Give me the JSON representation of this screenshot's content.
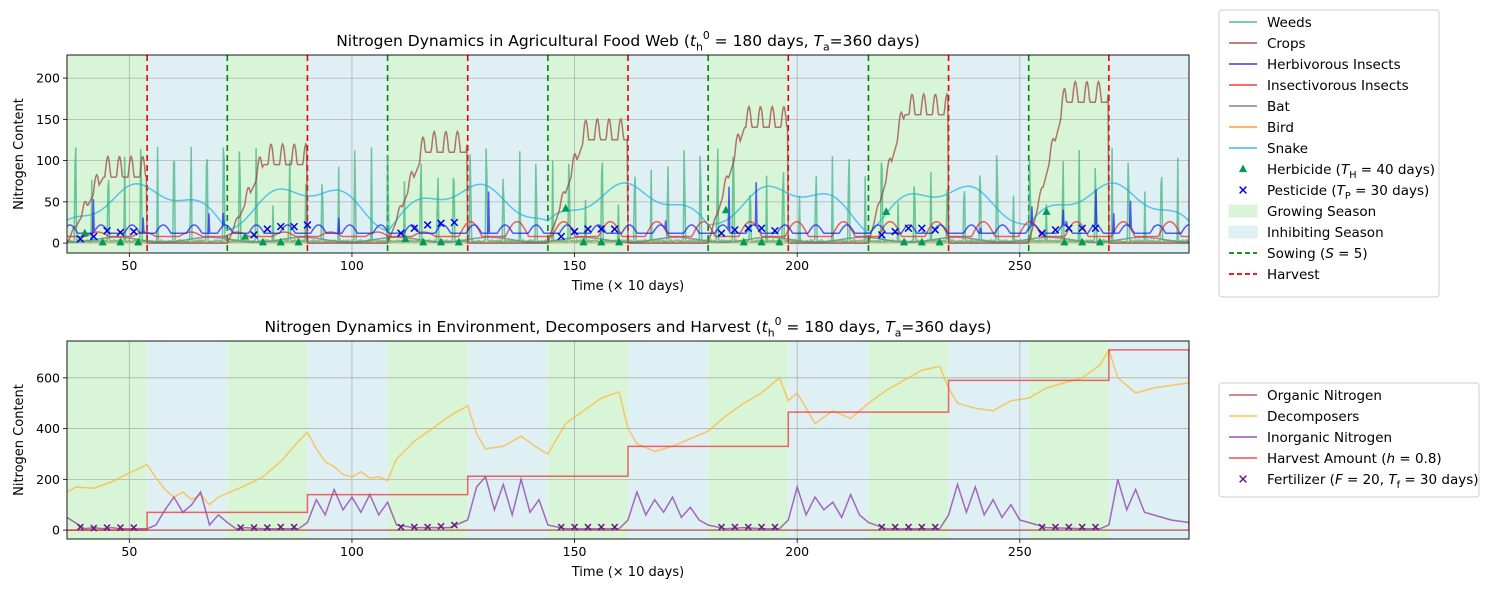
{
  "chart_data": [
    {
      "type": "line",
      "title": "Nitrogen Dynamics in Agricultural Food Web (t_h^0 = 180 days, T_a=360 days)",
      "title_parts": [
        "Nitrogen Dynamics in Agricultural Food Web (",
        "t",
        "h",
        "0",
        " = 180 days, ",
        "T",
        "a",
        "=360 days)"
      ],
      "xlabel": "Time (× 10 days)",
      "ylabel": "Nitrogen Content",
      "xlim": [
        36,
        288
      ],
      "ylim": [
        -12,
        228
      ],
      "xticks": [
        50,
        100,
        150,
        200,
        250
      ],
      "yticks": [
        0,
        50,
        100,
        150,
        200
      ],
      "grid": true,
      "legend_position": "outside right",
      "colors": {
        "Weeds": "#3cb07a",
        "Crops": "#9c3d36",
        "Herbivorous Insects": "#1a1aee",
        "Insectivorous Insects": "#ee2222",
        "Bat": "#707070",
        "Bird": "#ff8c1a",
        "Snake": "#1ab2ee",
        "Herbicide": "#009955",
        "Pesticide": "#0000ee",
        "growing": "#d8f5d8",
        "inhibiting": "#dff0f5",
        "sowing": "#008800",
        "harvest": "#ee0000"
      },
      "season_bounds": [
        36,
        54,
        72,
        90,
        108,
        126,
        144,
        162,
        180,
        198,
        216,
        234,
        252,
        270,
        288
      ],
      "season_types": [
        "growing",
        "inhibiting",
        "growing",
        "inhibiting",
        "growing",
        "inhibiting",
        "growing",
        "inhibiting",
        "growing",
        "inhibiting",
        "growing",
        "inhibiting",
        "growing",
        "inhibiting"
      ],
      "sowing_lines": [
        72,
        108,
        144,
        180,
        216,
        252
      ],
      "harvest_lines": [
        54,
        90,
        126,
        162,
        198,
        234,
        270
      ],
      "herbicide_points": [
        [
          40,
          12
        ],
        [
          44,
          1
        ],
        [
          48,
          1
        ],
        [
          52,
          1
        ],
        [
          76,
          8
        ],
        [
          80,
          1
        ],
        [
          84,
          1
        ],
        [
          88,
          1
        ],
        [
          112,
          5
        ],
        [
          116,
          1
        ],
        [
          120,
          1
        ],
        [
          124,
          1
        ],
        [
          148,
          42
        ],
        [
          152,
          1
        ],
        [
          156,
          1
        ],
        [
          160,
          1
        ],
        [
          184,
          40
        ],
        [
          188,
          1
        ],
        [
          192,
          1
        ],
        [
          196,
          1
        ],
        [
          220,
          38
        ],
        [
          224,
          1
        ],
        [
          228,
          1
        ],
        [
          232,
          1
        ],
        [
          256,
          38
        ],
        [
          260,
          1
        ],
        [
          264,
          1
        ],
        [
          268,
          1
        ]
      ],
      "pesticide_points": [
        [
          39,
          5
        ],
        [
          42,
          8
        ],
        [
          45,
          15
        ],
        [
          48,
          13
        ],
        [
          51,
          14
        ],
        [
          78,
          10
        ],
        [
          81,
          17
        ],
        [
          84,
          20
        ],
        [
          87,
          20
        ],
        [
          90,
          22
        ],
        [
          111,
          12
        ],
        [
          114,
          18
        ],
        [
          117,
          22
        ],
        [
          120,
          24
        ],
        [
          123,
          25
        ],
        [
          147,
          8
        ],
        [
          150,
          14
        ],
        [
          153,
          17
        ],
        [
          156,
          17
        ],
        [
          159,
          17
        ],
        [
          183,
          12
        ],
        [
          186,
          16
        ],
        [
          189,
          18
        ],
        [
          192,
          18
        ],
        [
          195,
          15
        ],
        [
          219,
          10
        ],
        [
          222,
          14
        ],
        [
          225,
          18
        ],
        [
          228,
          18
        ],
        [
          231,
          16
        ],
        [
          255,
          12
        ],
        [
          258,
          16
        ],
        [
          261,
          18
        ],
        [
          264,
          18
        ],
        [
          267,
          18
        ]
      ],
      "legend": [
        {
          "label": "Weeds",
          "kind": "line",
          "color": "#3cb07a"
        },
        {
          "label": "Crops",
          "kind": "line",
          "color": "#9c3d36"
        },
        {
          "label": "Herbivorous Insects",
          "kind": "line",
          "color": "#1a1aee"
        },
        {
          "label": "Insectivorous Insects",
          "kind": "line",
          "color": "#ee2222"
        },
        {
          "label": "Bat",
          "kind": "line",
          "color": "#707070"
        },
        {
          "label": "Bird",
          "kind": "line",
          "color": "#ff8c1a"
        },
        {
          "label": "Snake",
          "kind": "line",
          "color": "#1ab2ee"
        },
        {
          "label": "Herbicide (T_H = 40 days)",
          "parts": [
            "Herbicide (",
            "T",
            "H",
            " = 40 days)"
          ],
          "kind": "triangle",
          "color": "#009955"
        },
        {
          "label": "Pesticide (T_P = 30 days)",
          "parts": [
            "Pesticide (",
            "T",
            "P",
            " = 30 days)"
          ],
          "kind": "x",
          "color": "#0000ee"
        },
        {
          "label": "Growing Season",
          "kind": "patch",
          "color": "#d8f5d8"
        },
        {
          "label": "Inhibiting Season",
          "kind": "patch",
          "color": "#dff0f5"
        },
        {
          "label": "Sowing (S = 5)",
          "parts": [
            "Sowing (",
            "S",
            "",
            " = 5)"
          ],
          "kind": "dash",
          "color": "#008800"
        },
        {
          "label": "Harvest",
          "kind": "dash",
          "color": "#ee0000"
        }
      ]
    },
    {
      "type": "line",
      "title": "Nitrogen Dynamics in Environment, Decomposers and Harvest (t_h^0 = 180 days, T_a=360 days)",
      "title_parts": [
        "Nitrogen Dynamics in Environment, Decomposers and Harvest (",
        "t",
        "h",
        "0",
        " = 180 days, ",
        "T",
        "a",
        "=360 days)"
      ],
      "xlabel": "Time (× 10 days)",
      "ylabel": "Nitrogen Content",
      "xlim": [
        36,
        288
      ],
      "ylim": [
        -35,
        745
      ],
      "xticks": [
        50,
        100,
        150,
        200,
        250
      ],
      "yticks": [
        0,
        200,
        400,
        600
      ],
      "grid": true,
      "legend_position": "outside right",
      "series": [
        {
          "name": "Organic Nitrogen",
          "color": "#b34a4a",
          "x": [
            36,
            288
          ],
          "y": [
            0,
            0
          ]
        },
        {
          "name": "Decomposers",
          "color": "#ffb733",
          "x": [
            36,
            38,
            42,
            46,
            50,
            54,
            56,
            58,
            60,
            62,
            64,
            66,
            68,
            70,
            72,
            76,
            80,
            84,
            88,
            90,
            92,
            94,
            96,
            98,
            100,
            102,
            104,
            106,
            108,
            110,
            114,
            118,
            122,
            126,
            128,
            130,
            134,
            138,
            142,
            144,
            148,
            152,
            156,
            160,
            162,
            164,
            168,
            172,
            176,
            180,
            184,
            188,
            192,
            196,
            198,
            200,
            204,
            208,
            212,
            216,
            220,
            224,
            228,
            232,
            234,
            236,
            240,
            244,
            248,
            252,
            256,
            260,
            264,
            268,
            270,
            272,
            276,
            280,
            284,
            288
          ],
          "y": [
            150,
            170,
            165,
            190,
            225,
            258,
            205,
            160,
            130,
            150,
            120,
            140,
            100,
            130,
            145,
            175,
            210,
            270,
            350,
            385,
            320,
            270,
            250,
            220,
            210,
            230,
            205,
            210,
            195,
            280,
            350,
            400,
            450,
            490,
            380,
            320,
            330,
            370,
            320,
            300,
            420,
            470,
            520,
            545,
            400,
            340,
            310,
            330,
            360,
            390,
            450,
            500,
            540,
            600,
            510,
            540,
            420,
            470,
            440,
            500,
            550,
            590,
            630,
            645,
            560,
            500,
            480,
            470,
            510,
            520,
            560,
            580,
            600,
            650,
            710,
            600,
            540,
            560,
            570,
            580
          ]
        },
        {
          "name": "Inorganic Nitrogen",
          "color": "#8e3aa8",
          "x": [
            36,
            40,
            42,
            44,
            46,
            48,
            50,
            52,
            54,
            56,
            58,
            60,
            62,
            64,
            66,
            68,
            70,
            72,
            74,
            76,
            80,
            84,
            88,
            90,
            92,
            94,
            96,
            98,
            100,
            102,
            104,
            106,
            108,
            110,
            114,
            118,
            122,
            126,
            128,
            130,
            132,
            134,
            136,
            138,
            140,
            142,
            144,
            148,
            152,
            156,
            160,
            162,
            164,
            166,
            168,
            170,
            172,
            174,
            176,
            178,
            180,
            184,
            188,
            192,
            196,
            198,
            200,
            202,
            204,
            206,
            208,
            210,
            212,
            214,
            216,
            220,
            224,
            228,
            232,
            234,
            236,
            238,
            240,
            242,
            244,
            246,
            248,
            250,
            252,
            256,
            260,
            264,
            268,
            270,
            272,
            274,
            276,
            278,
            280,
            284,
            288
          ],
          "y": [
            50,
            5,
            10,
            5,
            10,
            5,
            5,
            5,
            5,
            20,
            80,
            130,
            70,
            100,
            150,
            20,
            60,
            30,
            5,
            10,
            5,
            5,
            5,
            30,
            120,
            60,
            160,
            80,
            130,
            70,
            140,
            60,
            110,
            20,
            10,
            10,
            10,
            40,
            170,
            210,
            80,
            180,
            60,
            200,
            70,
            120,
            20,
            5,
            5,
            5,
            5,
            40,
            150,
            60,
            120,
            70,
            130,
            50,
            90,
            40,
            20,
            5,
            10,
            5,
            5,
            40,
            170,
            60,
            130,
            80,
            110,
            50,
            140,
            60,
            30,
            5,
            5,
            5,
            5,
            60,
            180,
            70,
            170,
            60,
            120,
            50,
            100,
            40,
            30,
            10,
            8,
            5,
            5,
            20,
            200,
            80,
            160,
            70,
            60,
            40,
            30
          ]
        },
        {
          "name": "Harvest Amount (h = 0.8)",
          "color": "#ee3333",
          "step": true,
          "x": [
            36,
            54,
            90,
            126,
            162,
            198,
            234,
            270,
            288
          ],
          "y": [
            0,
            70,
            140,
            212,
            330,
            465,
            590,
            710,
            710
          ]
        }
      ],
      "fertilizer_points": [
        [
          39,
          12
        ],
        [
          42,
          8
        ],
        [
          45,
          10
        ],
        [
          48,
          10
        ],
        [
          51,
          10
        ],
        [
          75,
          10
        ],
        [
          78,
          10
        ],
        [
          81,
          10
        ],
        [
          84,
          12
        ],
        [
          87,
          12
        ],
        [
          111,
          12
        ],
        [
          114,
          12
        ],
        [
          117,
          12
        ],
        [
          120,
          15
        ],
        [
          123,
          20
        ],
        [
          147,
          12
        ],
        [
          150,
          12
        ],
        [
          153,
          12
        ],
        [
          156,
          12
        ],
        [
          159,
          12
        ],
        [
          183,
          12
        ],
        [
          186,
          12
        ],
        [
          189,
          12
        ],
        [
          192,
          12
        ],
        [
          195,
          12
        ],
        [
          219,
          12
        ],
        [
          222,
          12
        ],
        [
          225,
          12
        ],
        [
          228,
          12
        ],
        [
          231,
          12
        ],
        [
          255,
          12
        ],
        [
          258,
          12
        ],
        [
          261,
          12
        ],
        [
          264,
          12
        ],
        [
          267,
          12
        ]
      ],
      "legend": [
        {
          "label": "Organic Nitrogen",
          "kind": "line",
          "color": "#b34a4a"
        },
        {
          "label": "Decomposers",
          "kind": "line",
          "color": "#ffb733"
        },
        {
          "label": "Inorganic Nitrogen",
          "kind": "line",
          "color": "#8e3aa8"
        },
        {
          "label": "Harvest Amount (h = 0.8)",
          "parts": [
            "Harvest Amount (",
            "h",
            "",
            " = 0.8)"
          ],
          "kind": "line",
          "color": "#ee3333"
        },
        {
          "label": "Fertilizer (F = 20, T_f = 30 days)",
          "parts": [
            "Fertilizer (",
            "F",
            "",
            " = 20, ",
            "T",
            "f",
            " = 30 days)"
          ],
          "kind": "x",
          "color": "#6a1a80"
        }
      ]
    }
  ]
}
